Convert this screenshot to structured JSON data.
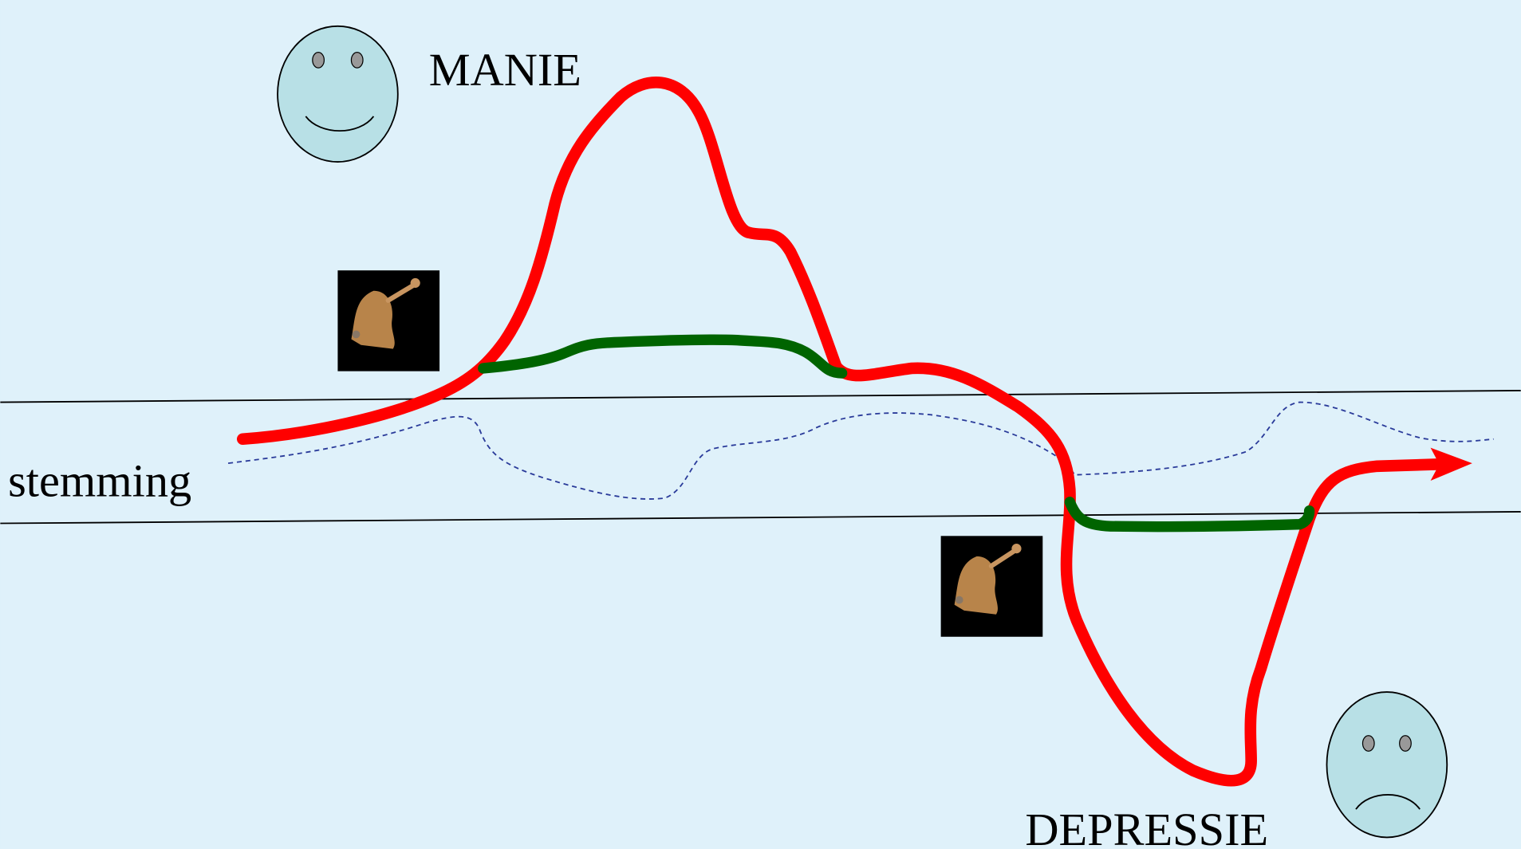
{
  "labels": {
    "top": "MANIE",
    "middle": "stemming",
    "bottom": "DEPRESSIE"
  }
}
